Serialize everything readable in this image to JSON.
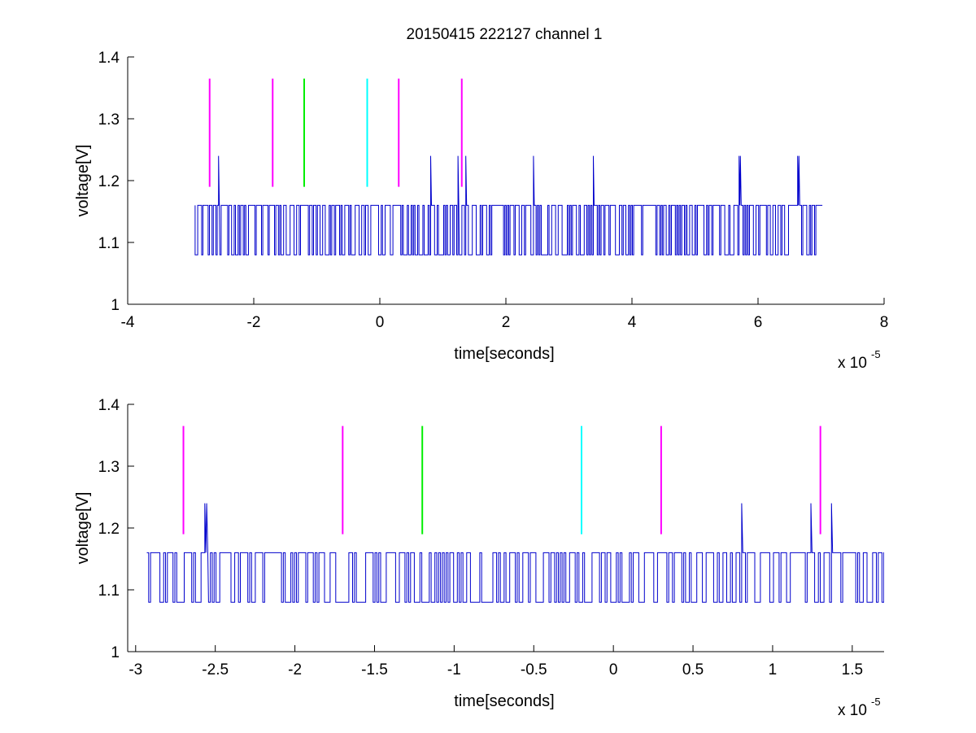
{
  "chart_data": [
    {
      "type": "line",
      "title": "20150415 222127 channel 1",
      "xlabel": "time[seconds]",
      "ylabel": "voltage[V]",
      "x_multiplier_label": "x 10",
      "x_multiplier_exponent": "-5",
      "xlim": [
        -4,
        8
      ],
      "ylim": [
        1,
        1.4
      ],
      "xticks": [
        -4,
        -2,
        0,
        2,
        4,
        6,
        8
      ],
      "yticks": [
        1,
        1.1,
        1.2,
        1.3,
        1.4
      ],
      "xtick_labels": [
        "-4",
        "-2",
        "0",
        "2",
        "4",
        "6",
        "8"
      ],
      "ytick_labels": [
        "1",
        "1.1",
        "1.2",
        "1.3",
        "1.4"
      ],
      "grid": false,
      "signal": {
        "color": "#0000cc",
        "x_range": [
          -2.93,
          7.02
        ],
        "low": 1.08,
        "high": 1.16,
        "spikes": [
          {
            "x": -2.56,
            "y": 1.24
          },
          {
            "x": 0.81,
            "y": 1.24
          },
          {
            "x": 1.24,
            "y": 1.24
          },
          {
            "x": 1.37,
            "y": 1.24
          },
          {
            "x": 2.44,
            "y": 1.24
          },
          {
            "x": 3.38,
            "y": 1.24
          },
          {
            "x": 5.71,
            "y": 1.24
          },
          {
            "x": 6.64,
            "y": 1.24
          }
        ]
      },
      "markers": [
        {
          "x": -2.7,
          "color": "#ff00ff",
          "y_range": [
            1.19,
            1.365
          ]
        },
        {
          "x": -1.7,
          "color": "#ff00ff",
          "y_range": [
            1.19,
            1.365
          ]
        },
        {
          "x": -1.2,
          "color": "#00ee00",
          "y_range": [
            1.19,
            1.365
          ]
        },
        {
          "x": -0.2,
          "color": "#00ffff",
          "y_range": [
            1.19,
            1.365
          ]
        },
        {
          "x": 0.3,
          "color": "#ff00ff",
          "y_range": [
            1.19,
            1.365
          ]
        },
        {
          "x": 1.3,
          "color": "#ff00ff",
          "y_range": [
            1.19,
            1.365
          ]
        }
      ]
    },
    {
      "type": "line",
      "title": "",
      "xlabel": "time[seconds]",
      "ylabel": "voltage[V]",
      "x_multiplier_label": "x 10",
      "x_multiplier_exponent": "-5",
      "xlim": [
        -3.05,
        1.7
      ],
      "ylim": [
        1,
        1.4
      ],
      "xticks": [
        -3,
        -2.5,
        -2,
        -1.5,
        -1,
        -0.5,
        0,
        0.5,
        1,
        1.5
      ],
      "yticks": [
        1,
        1.1,
        1.2,
        1.3,
        1.4
      ],
      "xtick_labels": [
        "-3",
        "-2.5",
        "-2",
        "-1.5",
        "-1",
        "-0.5",
        "0",
        "0.5",
        "1",
        "1.5"
      ],
      "ytick_labels": [
        "1",
        "1.1",
        "1.2",
        "1.3",
        "1.4"
      ],
      "grid": false,
      "signal": {
        "color": "#0000cc",
        "x_range": [
          -2.93,
          1.7
        ],
        "low": 1.08,
        "high": 1.16,
        "spikes": [
          {
            "x": -2.56,
            "y": 1.24
          },
          {
            "x": 0.81,
            "y": 1.24
          },
          {
            "x": 1.24,
            "y": 1.24
          },
          {
            "x": 1.37,
            "y": 1.24
          }
        ]
      },
      "markers": [
        {
          "x": -2.7,
          "color": "#ff00ff",
          "y_range": [
            1.19,
            1.365
          ]
        },
        {
          "x": -1.7,
          "color": "#ff00ff",
          "y_range": [
            1.19,
            1.365
          ]
        },
        {
          "x": -1.2,
          "color": "#00ee00",
          "y_range": [
            1.19,
            1.365
          ]
        },
        {
          "x": -0.2,
          "color": "#00ffff",
          "y_range": [
            1.19,
            1.365
          ]
        },
        {
          "x": 0.3,
          "color": "#ff00ff",
          "y_range": [
            1.19,
            1.365
          ]
        },
        {
          "x": 1.3,
          "color": "#ff00ff",
          "y_range": [
            1.19,
            1.365
          ]
        }
      ]
    }
  ]
}
